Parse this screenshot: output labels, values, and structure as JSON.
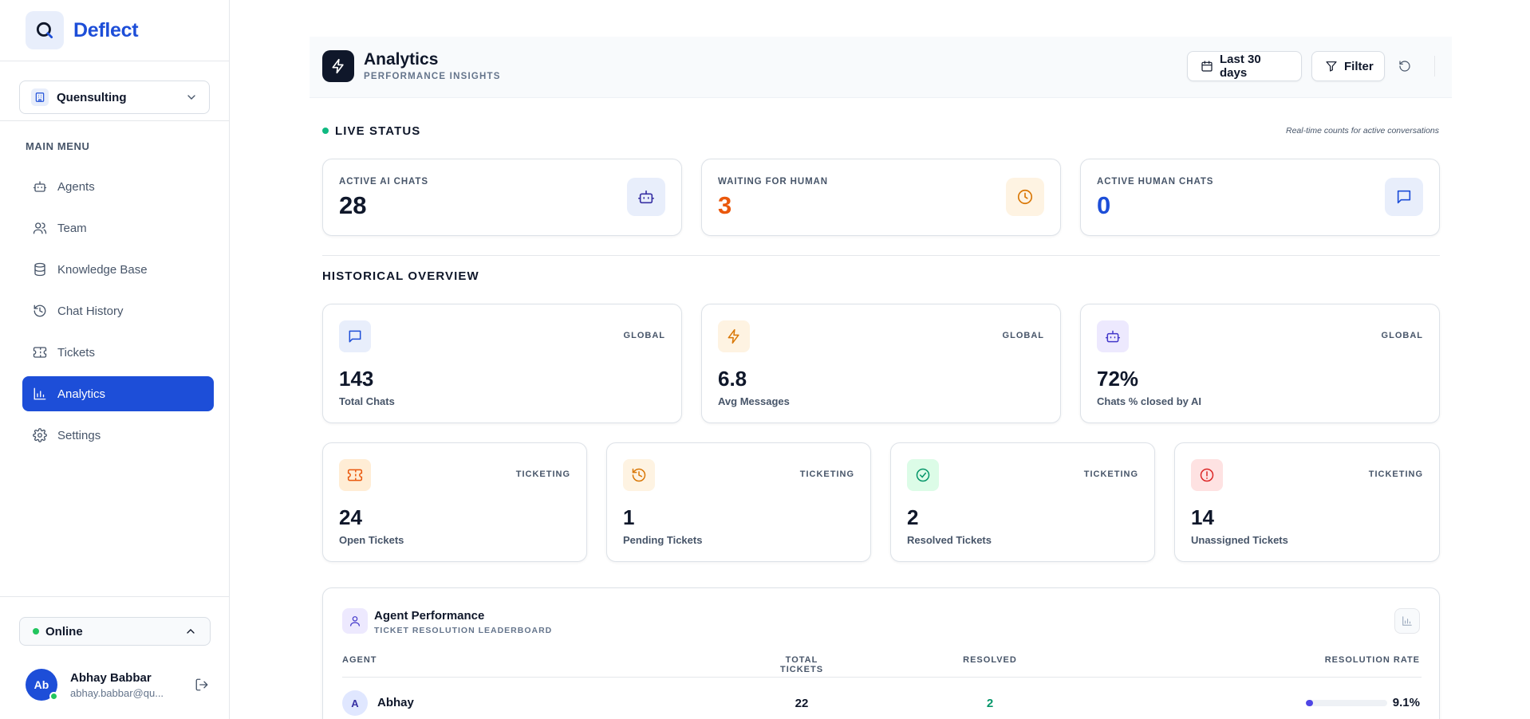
{
  "brand": {
    "name": "Deflect"
  },
  "org": {
    "name": "Quensulting"
  },
  "menu": {
    "label": "MAIN MENU",
    "items": [
      {
        "label": "Agents",
        "icon": "robot-icon"
      },
      {
        "label": "Team",
        "icon": "users-icon"
      },
      {
        "label": "Knowledge Base",
        "icon": "database-icon"
      },
      {
        "label": "Chat History",
        "icon": "history-icon"
      },
      {
        "label": "Tickets",
        "icon": "ticket-icon"
      },
      {
        "label": "Analytics",
        "icon": "bar-chart-icon",
        "active": true
      },
      {
        "label": "Settings",
        "icon": "gear-icon"
      }
    ]
  },
  "status": {
    "label": "Online"
  },
  "user": {
    "initials": "Ab",
    "name": "Abhay Babbar",
    "email": "abhay.babbar@qu..."
  },
  "header": {
    "title": "Analytics",
    "subtitle": "PERFORMANCE INSIGHTS",
    "date_range": "Last 30 days",
    "filter_label": "Filter"
  },
  "live": {
    "title": "LIVE STATUS",
    "note": "Real-time counts for active conversations",
    "cards": [
      {
        "label": "ACTIVE AI CHATS",
        "value": "28",
        "color": "#0f172a"
      },
      {
        "label": "WAITING FOR HUMAN",
        "value": "3",
        "color": "#ea580c"
      },
      {
        "label": "ACTIVE HUMAN CHATS",
        "value": "0",
        "color": "#1d4ed8"
      }
    ]
  },
  "historical": {
    "title": "HISTORICAL OVERVIEW",
    "global": [
      {
        "tag": "GLOBAL",
        "value": "143",
        "label": "Total Chats"
      },
      {
        "tag": "GLOBAL",
        "value": "6.8",
        "label": "Avg Messages"
      },
      {
        "tag": "GLOBAL",
        "value": "72%",
        "label": "Chats % closed by AI"
      }
    ],
    "ticketing": [
      {
        "tag": "TICKETING",
        "value": "24",
        "label": "Open Tickets"
      },
      {
        "tag": "TICKETING",
        "value": "1",
        "label": "Pending Tickets"
      },
      {
        "tag": "TICKETING",
        "value": "2",
        "label": "Resolved Tickets"
      },
      {
        "tag": "TICKETING",
        "value": "14",
        "label": "Unassigned Tickets"
      }
    ]
  },
  "performance": {
    "title": "Agent Performance",
    "subtitle": "TICKET RESOLUTION LEADERBOARD",
    "columns": {
      "agent": "AGENT",
      "total": "TOTAL TICKETS",
      "resolved": "RESOLVED",
      "rate": "RESOLUTION RATE"
    },
    "rows": [
      {
        "initial": "A",
        "name": "Abhay",
        "total": "22",
        "resolved": "2",
        "rate": "9.1%",
        "rate_fraction": 0.091
      }
    ]
  }
}
